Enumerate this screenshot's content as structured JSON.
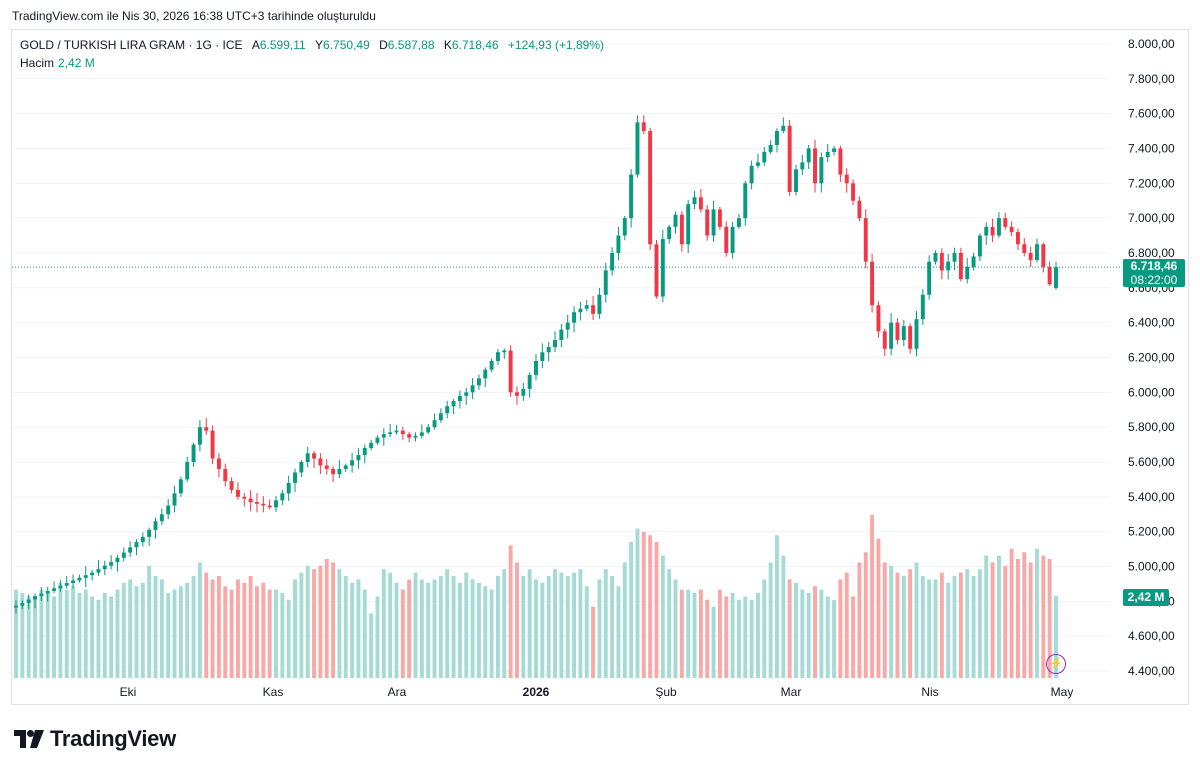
{
  "header": {
    "note": "TradingView.com ile Nis 30, 2026 16:38 UTC+3 tarihinde oluşturuldu"
  },
  "legend": {
    "symbol": "GOLD / TURKISH LIRA GRAM · 1G · ICE",
    "open_label": "A",
    "open": "6.599,11",
    "high_label": "Y",
    "high": "6.750,49",
    "low_label": "D",
    "low": "6.587,88",
    "close_label": "K",
    "close": "6.718,46",
    "change": "+124,93 (+1,89%)",
    "volume_label": "Hacim",
    "volume": "2,42 M"
  },
  "price_tag": {
    "price": "6.718,46",
    "countdown": "08:22:00"
  },
  "volume_tag": "2,42 M",
  "brand": {
    "name": "TradingView"
  },
  "colors": {
    "up": "#089981",
    "down": "#f23645",
    "vol_up": "#a6dbd5",
    "vol_down": "#f7a9a7",
    "grid": "#f0f3fa",
    "axis_text": "#131722"
  },
  "icons": {
    "brand": "tradingview-logo",
    "alert": "lightning-icon"
  },
  "chart_data": {
    "type": "candlestick",
    "title": "GOLD / TURKISH LIRA GRAM",
    "y_axis_ticks": [
      "8.000,00",
      "7.800,00",
      "7.600,00",
      "7.400,00",
      "7.200,00",
      "7.000,00",
      "6.800,00",
      "6.600,00",
      "6.400,00",
      "6.200,00",
      "6.000,00",
      "5.800,00",
      "5.600,00",
      "5.400,00",
      "5.200,00",
      "5.000,00",
      "4.800,00",
      "4.600,00",
      "4.400,00"
    ],
    "y_axis_values": [
      8000,
      7800,
      7600,
      7400,
      7200,
      7000,
      6800,
      6600,
      6400,
      6200,
      6000,
      5800,
      5600,
      5400,
      5200,
      5000,
      4800,
      4600,
      4400
    ],
    "ylim": [
      4360,
      8080
    ],
    "x_axis_labels": [
      {
        "label": "Eki",
        "bold": false
      },
      {
        "label": "Kas",
        "bold": false
      },
      {
        "label": "Ara",
        "bold": false
      },
      {
        "label": "2026",
        "bold": true
      },
      {
        "label": "Şub",
        "bold": false
      },
      {
        "label": "Mar",
        "bold": false
      },
      {
        "label": "Nis",
        "bold": false
      },
      {
        "label": "May",
        "bold": false
      }
    ],
    "last_close": 6718.46,
    "close_series": [
      4775,
      4790,
      4810,
      4830,
      4845,
      4860,
      4875,
      4890,
      4905,
      4920,
      4935,
      4950,
      4965,
      4985,
      5005,
      5025,
      5050,
      5080,
      5110,
      5140,
      5170,
      5210,
      5260,
      5300,
      5350,
      5420,
      5500,
      5600,
      5700,
      5800,
      5780,
      5620,
      5560,
      5490,
      5440,
      5400,
      5390,
      5370,
      5360,
      5350,
      5340,
      5380,
      5420,
      5480,
      5540,
      5600,
      5650,
      5620,
      5580,
      5560,
      5530,
      5560,
      5580,
      5610,
      5640,
      5680,
      5710,
      5740,
      5760,
      5770,
      5780,
      5760,
      5740,
      5750,
      5770,
      5800,
      5840,
      5880,
      5920,
      5950,
      5980,
      6000,
      6040,
      6080,
      6130,
      6180,
      6230,
      6240,
      6000,
      5980,
      6020,
      6100,
      6180,
      6230,
      6260,
      6300,
      6360,
      6400,
      6460,
      6480,
      6500,
      6450,
      6560,
      6700,
      6800,
      6900,
      7000,
      7250,
      7550,
      7500,
      6850,
      6550,
      6880,
      6950,
      7020,
      6850,
      7080,
      7120,
      7050,
      6900,
      7050,
      6950,
      6800,
      6950,
      7000,
      7200,
      7300,
      7320,
      7380,
      7420,
      7500,
      7530,
      7150,
      7280,
      7320,
      7400,
      7200,
      7350,
      7380,
      7400,
      7250,
      7200,
      7100,
      7000,
      6750,
      6500,
      6350,
      6250,
      6400,
      6300,
      6380,
      6250,
      6420,
      6560,
      6750,
      6800,
      6700,
      6750,
      6800,
      6650,
      6720,
      6780,
      6900,
      6950,
      6900,
      7000,
      6950,
      6920,
      6850,
      6800,
      6760,
      6850,
      6720,
      6620,
      6718
    ],
    "volume_series": [
      2.6,
      2.5,
      2.4,
      2.3,
      2.6,
      2.5,
      2.4,
      2.8,
      2.6,
      2.7,
      2.5,
      2.6,
      2.4,
      2.3,
      2.5,
      2.4,
      2.6,
      2.8,
      2.9,
      2.7,
      2.8,
      3.3,
      3.0,
      2.9,
      2.5,
      2.6,
      2.7,
      2.8,
      3.0,
      3.4,
      3.1,
      2.9,
      3.0,
      2.7,
      2.6,
      2.9,
      2.8,
      3.0,
      2.7,
      2.8,
      2.6,
      2.6,
      2.5,
      2.3,
      2.9,
      3.1,
      3.3,
      3.2,
      3.3,
      3.5,
      3.4,
      3.2,
      3.0,
      2.8,
      2.9,
      2.6,
      1.9,
      2.4,
      3.2,
      3.1,
      2.8,
      2.6,
      2.9,
      3.1,
      2.9,
      2.8,
      2.9,
      3.0,
      3.2,
      3.0,
      2.8,
      3.1,
      2.9,
      2.8,
      2.7,
      2.6,
      3.0,
      3.2,
      3.9,
      3.4,
      3.0,
      3.2,
      2.9,
      2.8,
      3.0,
      3.2,
      3.1,
      3.0,
      3.1,
      3.2,
      2.7,
      2.1,
      2.9,
      3.2,
      3.0,
      2.7,
      3.4,
      4.0,
      4.4,
      4.3,
      4.2,
      4.0,
      3.6,
      3.2,
      2.9,
      2.6,
      2.6,
      2.5,
      2.6,
      2.3,
      2.1,
      2.6,
      2.4,
      2.5,
      2.3,
      2.4,
      2.3,
      2.5,
      2.9,
      3.4,
      4.2,
      3.6,
      2.9,
      2.8,
      2.6,
      2.5,
      2.7,
      2.6,
      2.4,
      2.3,
      2.9,
      3.1,
      2.4,
      3.4,
      3.7,
      4.8,
      4.1,
      3.4,
      3.3,
      3.1,
      3.0,
      3.2,
      3.4,
      3.0,
      2.9,
      2.9,
      3.1,
      2.8,
      3.0,
      3.1,
      3.2,
      3.0,
      3.2,
      3.6,
      3.4,
      3.6,
      3.3,
      3.8,
      3.5,
      3.7,
      3.4,
      3.8,
      3.6,
      3.5,
      2.42
    ]
  }
}
